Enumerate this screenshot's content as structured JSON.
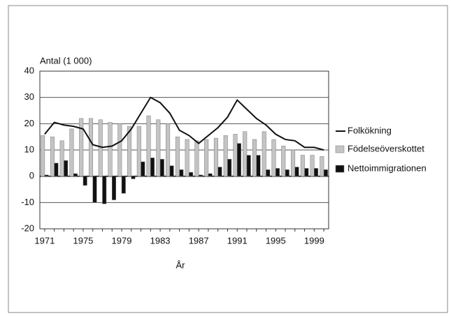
{
  "chart_data": {
    "type": "bar",
    "ylabel": "Antal (1 000)",
    "xlabel": "År",
    "categories": [
      "1971",
      null,
      null,
      null,
      "1975",
      null,
      null,
      null,
      "1979",
      null,
      null,
      null,
      "1983",
      null,
      null,
      null,
      "1987",
      null,
      null,
      null,
      "1991",
      null,
      null,
      null,
      "1995",
      null,
      null,
      null,
      "1999",
      null
    ],
    "series": [
      {
        "name": "Folkökning",
        "type": "line",
        "color": "#111111",
        "values": [
          16,
          20.5,
          19.5,
          19,
          18,
          12,
          11,
          11.5,
          13.5,
          18,
          24,
          30,
          28,
          24,
          17.5,
          15.5,
          12.5,
          15.5,
          18.5,
          22.5,
          29,
          25.5,
          22,
          19.5,
          16,
          14,
          13.5,
          11,
          11,
          10
        ]
      },
      {
        "name": "Födelseöverskottet",
        "type": "bar",
        "color": "#c4c4c4",
        "values": [
          15.5,
          15,
          13.5,
          18,
          22,
          22,
          21.5,
          20.5,
          20,
          19,
          19,
          23,
          21.5,
          20,
          15,
          14,
          13.5,
          14,
          14.5,
          15.5,
          16,
          17,
          14,
          17,
          14,
          11.5,
          10,
          8,
          8,
          7.5
        ]
      },
      {
        "name": "Nettoimmigrationen",
        "type": "bar",
        "color": "#111111",
        "values": [
          0.5,
          5,
          6,
          1,
          -3.5,
          -10,
          -10.5,
          -9,
          -6.5,
          -1,
          5.5,
          7,
          6.5,
          4,
          2.5,
          1.5,
          0.5,
          1,
          3.5,
          6.5,
          12.5,
          8,
          8,
          2.5,
          3,
          2.5,
          3.5,
          3,
          3,
          2.5
        ]
      }
    ],
    "ylim": [
      -20,
      40
    ],
    "yticks": [
      -20,
      -10,
      0,
      10,
      20,
      30,
      40
    ],
    "grid": true,
    "legend": "right"
  }
}
